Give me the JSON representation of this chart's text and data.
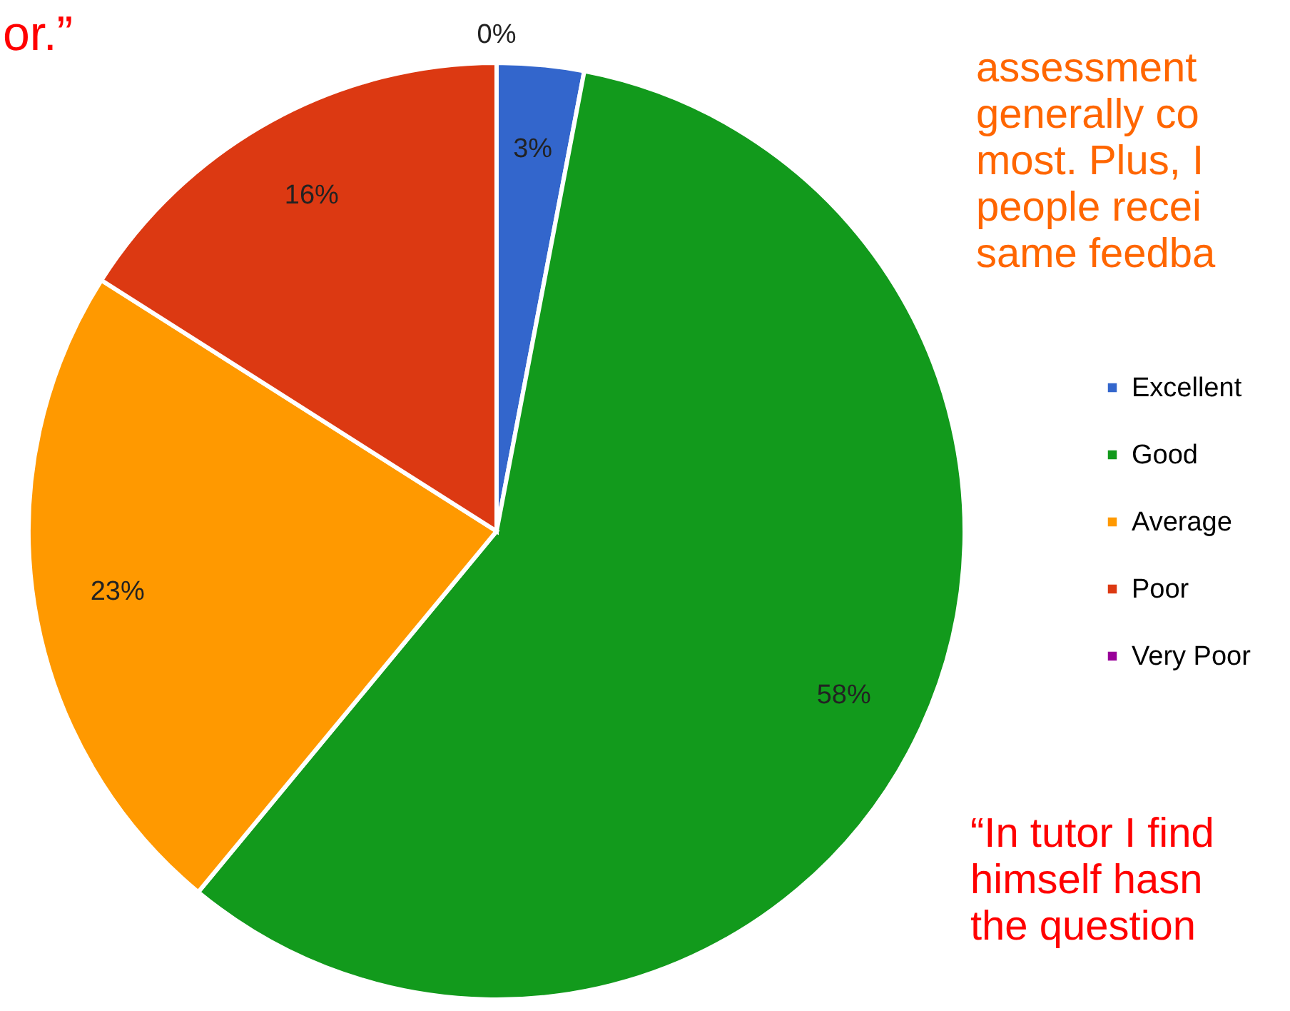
{
  "chart_data": {
    "type": "pie",
    "categories": [
      "Excellent",
      "Good",
      "Average",
      "Poor",
      "Very Poor"
    ],
    "values": [
      3,
      58,
      23,
      16,
      0
    ],
    "colors": [
      "#3366cc",
      "#129a1c",
      "#ff9900",
      "#dc3912",
      "#990099"
    ],
    "value_labels": [
      "3%",
      "58%",
      "23%",
      "16%",
      "0%"
    ],
    "legend": "right",
    "annotations": [
      "or.”",
      "assessment\ngenerally co\nmost. Plus, I\npeople recei\nsame feedba",
      "“In tutor I find\nhimself hasn\nthe question"
    ]
  }
}
